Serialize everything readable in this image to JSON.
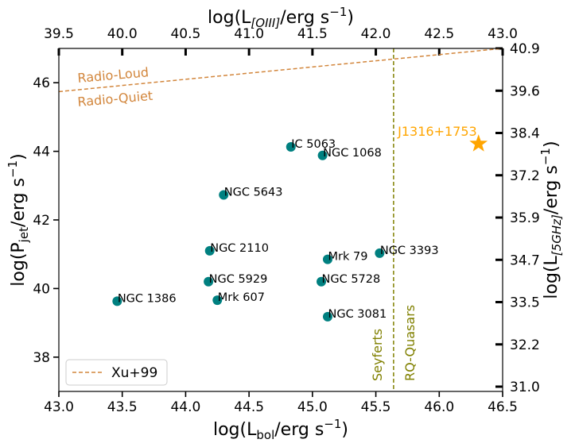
{
  "chart_data": {
    "type": "scatter",
    "bottom_axis": {
      "label_main": "log(L",
      "label_sub": "bol",
      "label_rest": "/erg s",
      "label_sup": "−1",
      "label_end": ")",
      "range": [
        43.0,
        46.5
      ],
      "ticks": [
        "43.0",
        "43.5",
        "44.0",
        "44.5",
        "45.0",
        "45.5",
        "46.0",
        "46.5"
      ]
    },
    "top_axis": {
      "label_main": "log(L",
      "label_sub": "[OIII]",
      "label_rest": "/erg s",
      "label_sup": "−1",
      "label_end": ")",
      "range": [
        39.5,
        43.0
      ],
      "ticks": [
        "39.5",
        "40.0",
        "40.5",
        "41.0",
        "41.5",
        "42.0",
        "42.5",
        "43.0"
      ]
    },
    "left_axis": {
      "label_main": "log(P",
      "label_sub": "jet",
      "label_rest": "/erg s",
      "label_sup": "−1",
      "label_end": ")",
      "range": [
        37.0,
        47.0
      ],
      "ticks": [
        "38",
        "40",
        "42",
        "44",
        "46"
      ]
    },
    "right_axis": {
      "label_main": "log(L",
      "label_sub": "[5GHz]",
      "label_rest": "/erg s",
      "label_sup": "−1",
      "label_end": ")",
      "ticks": [
        "31.0",
        "32.2",
        "33.5",
        "34.7",
        "35.9",
        "37.2",
        "38.4",
        "39.6",
        "40.9"
      ]
    },
    "points": [
      {
        "name": "NGC 1386",
        "x": 43.46,
        "y": 39.63
      },
      {
        "name": "NGC 2110",
        "x": 44.19,
        "y": 41.1
      },
      {
        "name": "NGC 5929",
        "x": 44.18,
        "y": 40.2
      },
      {
        "name": "Mrk 607",
        "x": 44.25,
        "y": 39.66
      },
      {
        "name": "NGC 5643",
        "x": 44.3,
        "y": 42.73
      },
      {
        "name": "IC 5063",
        "x": 44.83,
        "y": 44.13
      },
      {
        "name": "NGC 1068",
        "x": 45.08,
        "y": 43.88
      },
      {
        "name": "Mrk 79",
        "x": 45.12,
        "y": 40.85
      },
      {
        "name": "NGC 5728",
        "x": 45.07,
        "y": 40.2
      },
      {
        "name": "NGC 3081",
        "x": 45.12,
        "y": 39.18
      },
      {
        "name": "NGC 3393",
        "x": 45.53,
        "y": 41.03
      }
    ],
    "highlight": {
      "name": "J1316+1753",
      "x": 46.31,
      "y": 44.22,
      "color": "#FFA500"
    },
    "xu99_line": {
      "name": "Xu+99",
      "x": [
        43.0,
        46.5
      ],
      "y": [
        45.74,
        47.0
      ],
      "color": "#D2863C"
    },
    "divider": {
      "x": 45.64,
      "color": "#808000"
    },
    "annotations": {
      "radio_loud": "Radio-Loud",
      "radio_quiet": "Radio-Quiet",
      "seyferts": "Seyferts",
      "rq_quasars": "RQ-Quasars"
    },
    "point_color": "#008080",
    "legend": {
      "label": "Xu+99",
      "position": "lower-left"
    }
  }
}
